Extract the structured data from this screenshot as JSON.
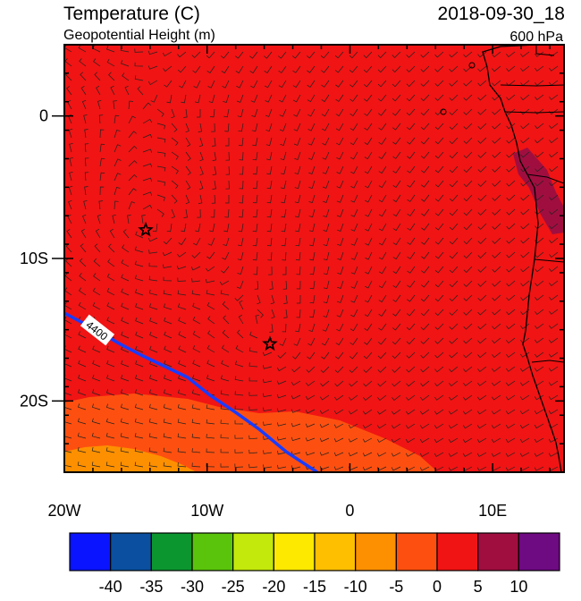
{
  "header": {
    "title_left": "Temperature (C)",
    "subtitle_left": "Geopotential Height (m)",
    "title_right": "2018-09-30_18",
    "subtitle_right": "600 hPa"
  },
  "axes": {
    "x_ticks": [
      {
        "lon": -20,
        "label": "20W"
      },
      {
        "lon": -10,
        "label": "10W"
      },
      {
        "lon": 0,
        "label": "0"
      },
      {
        "lon": 10,
        "label": "10E"
      }
    ],
    "y_ticks": [
      {
        "lat": 0,
        "label": "0"
      },
      {
        "lat": -10,
        "label": "10S"
      },
      {
        "lat": -20,
        "label": "20S"
      }
    ],
    "lon_range": [
      -20,
      15
    ],
    "lat_range": [
      -25,
      5
    ]
  },
  "contour": {
    "label": "4400",
    "color": "#1a3cff"
  },
  "markers": [
    {
      "name": "star-marker-1",
      "lon": -14.3,
      "lat": -8.0
    },
    {
      "name": "star-marker-2",
      "lon": -5.6,
      "lat": -16.0
    }
  ],
  "colorbar": {
    "colors": [
      "#0a14ff",
      "#0b4fa0",
      "#0c9630",
      "#5ac40c",
      "#c3e80c",
      "#fde800",
      "#fdbf00",
      "#fd9000",
      "#fd5010",
      "#f01414",
      "#a00e40",
      "#6e0a82"
    ],
    "labels": [
      "-40",
      "-35",
      "-30",
      "-25",
      "-20",
      "-15",
      "-10",
      "-5",
      "0",
      "5",
      "10"
    ]
  }
}
